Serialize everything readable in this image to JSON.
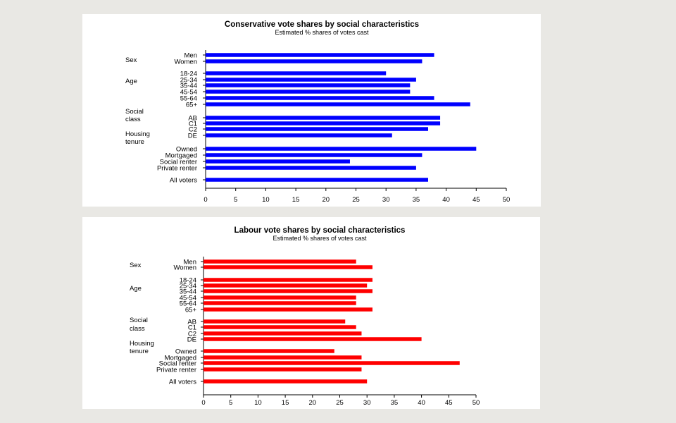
{
  "chart_data": [
    {
      "type": "bar",
      "orientation": "horizontal",
      "title": "Conservative vote shares by social characteristics",
      "subtitle": "Estimated % shares of votes cast",
      "color": "#0000ff",
      "xlim": [
        0,
        50
      ],
      "xticks": [
        "0",
        "5",
        "10",
        "15",
        "20",
        "25",
        "30",
        "35",
        "40",
        "45",
        "50"
      ],
      "groups": [
        {
          "label": [
            "Sex"
          ],
          "first_category": 0
        },
        {
          "label": [
            "Age"
          ],
          "first_category": 2
        },
        {
          "label": [
            "Social",
            "class"
          ],
          "first_category": 8
        },
        {
          "label": [
            "Housing",
            "tenure"
          ],
          "first_category": 12
        },
        {
          "label": [],
          "first_category": 16
        }
      ],
      "categories": [
        "Men",
        "Women",
        "18-24",
        "25-34",
        "35-44",
        "45-54",
        "55-64",
        "65+",
        "AB",
        "C1",
        "C2",
        "DE",
        "Owned",
        "Mortgaged",
        "Social renter",
        "Private renter",
        "All voters"
      ],
      "values": [
        38,
        36,
        30,
        35,
        34,
        34,
        38,
        44,
        39,
        39,
        37,
        31,
        45,
        36,
        24,
        35,
        37
      ]
    },
    {
      "type": "bar",
      "orientation": "horizontal",
      "title": "Labour vote shares by social characteristics",
      "subtitle": "Estimated % shares of votes cast",
      "color": "#ff0000",
      "xlim": [
        0,
        50
      ],
      "xticks": [
        "0",
        "5",
        "10",
        "15",
        "20",
        "25",
        "30",
        "35",
        "40",
        "45",
        "50"
      ],
      "groups": [
        {
          "label": [
            "Sex"
          ],
          "first_category": 0
        },
        {
          "label": [
            "Age"
          ],
          "first_category": 2
        },
        {
          "label": [
            "Social",
            "class"
          ],
          "first_category": 8
        },
        {
          "label": [
            "Housing",
            "tenure"
          ],
          "first_category": 12
        },
        {
          "label": [],
          "first_category": 16
        }
      ],
      "categories": [
        "Men",
        "Women",
        "18-24",
        "25-34",
        "35-44",
        "45-54",
        "55-64",
        "65+",
        "AB",
        "C1",
        "C2",
        "DE",
        "Owned",
        "Mortgaged",
        "Social renter",
        "Private renter",
        "All voters"
      ],
      "values": [
        28,
        31,
        31,
        30,
        31,
        28,
        28,
        31,
        26,
        28,
        29,
        40,
        24,
        29,
        47,
        29,
        30
      ]
    }
  ]
}
